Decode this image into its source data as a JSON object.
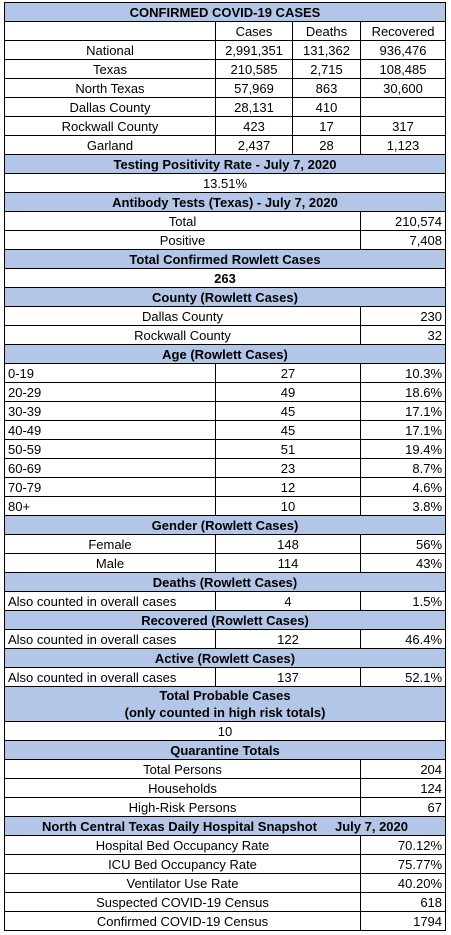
{
  "confirmed": {
    "title": "CONFIRMED COVID-19 CASES",
    "columns": [
      "Cases",
      "Deaths",
      "Recovered"
    ],
    "rows": [
      [
        "National",
        "2,991,351",
        "131,362",
        "936,476"
      ],
      [
        "Texas",
        "210,585",
        "2,715",
        "108,485"
      ],
      [
        "North Texas",
        "57,969",
        "863",
        "30,600"
      ],
      [
        "Dallas County",
        "28,131",
        "410",
        null
      ],
      [
        "Rockwall County",
        "423",
        "17",
        "317"
      ],
      [
        "Garland",
        "2,437",
        "28",
        "1,123"
      ]
    ]
  },
  "testing": {
    "title": "Testing Positivity Rate - July 7, 2020",
    "value": "13.51%"
  },
  "antibody": {
    "title": "Antibody Tests (Texas) - July 7, 2020",
    "rows": [
      [
        "Total",
        "210,574"
      ],
      [
        "Positive",
        "7,408"
      ]
    ]
  },
  "total_rowlett": {
    "title": "Total Confirmed Rowlett Cases",
    "value": "263"
  },
  "county": {
    "title": "County (Rowlett Cases)",
    "rows": [
      [
        "Dallas County",
        "230"
      ],
      [
        "Rockwall County",
        "32"
      ]
    ]
  },
  "age": {
    "title": "Age (Rowlett Cases)",
    "rows": [
      [
        "0-19",
        "27",
        "10.3%"
      ],
      [
        "20-29",
        "49",
        "18.6%"
      ],
      [
        "30-39",
        "45",
        "17.1%"
      ],
      [
        "40-49",
        "45",
        "17.1%"
      ],
      [
        "50-59",
        "51",
        "19.4%"
      ],
      [
        "60-69",
        "23",
        "8.7%"
      ],
      [
        "70-79",
        "12",
        "4.6%"
      ],
      [
        "80+",
        "10",
        "3.8%"
      ]
    ]
  },
  "gender": {
    "title": "Gender (Rowlett Cases)",
    "rows": [
      [
        "Female",
        "148",
        "56%"
      ],
      [
        "Male",
        "114",
        "43%"
      ]
    ]
  },
  "deaths": {
    "title": "Deaths (Rowlett Cases)",
    "rows": [
      [
        "Also counted in overall cases",
        "4",
        "1.5%"
      ]
    ]
  },
  "recovered": {
    "title": "Recovered (Rowlett Cases)",
    "rows": [
      [
        "Also counted in overall cases",
        "122",
        "46.4%"
      ]
    ]
  },
  "active": {
    "title": "Active (Rowlett Cases)",
    "rows": [
      [
        "Also counted in overall cases",
        "137",
        "52.1%"
      ]
    ]
  },
  "probable": {
    "title_lines": [
      "Total Probable Cases",
      "(only counted in high risk totals)"
    ],
    "value": "10"
  },
  "quarantine": {
    "title": "Quarantine Totals",
    "rows": [
      [
        "Total Persons",
        "204"
      ],
      [
        "Households",
        "124"
      ],
      [
        "High-Risk Persons",
        "67"
      ]
    ]
  },
  "hospital": {
    "title": "North Central Texas Daily Hospital Snapshot",
    "date": "July 7, 2020",
    "rows": [
      [
        "Hospital Bed Occupancy Rate",
        "70.12%"
      ],
      [
        "ICU Bed Occupancy Rate",
        "75.77%"
      ],
      [
        "Ventilator Use Rate",
        "40.20%"
      ],
      [
        "Suspected COVID-19 Census",
        "618"
      ],
      [
        "Confirmed COVID-19 Census",
        "1794"
      ]
    ]
  }
}
